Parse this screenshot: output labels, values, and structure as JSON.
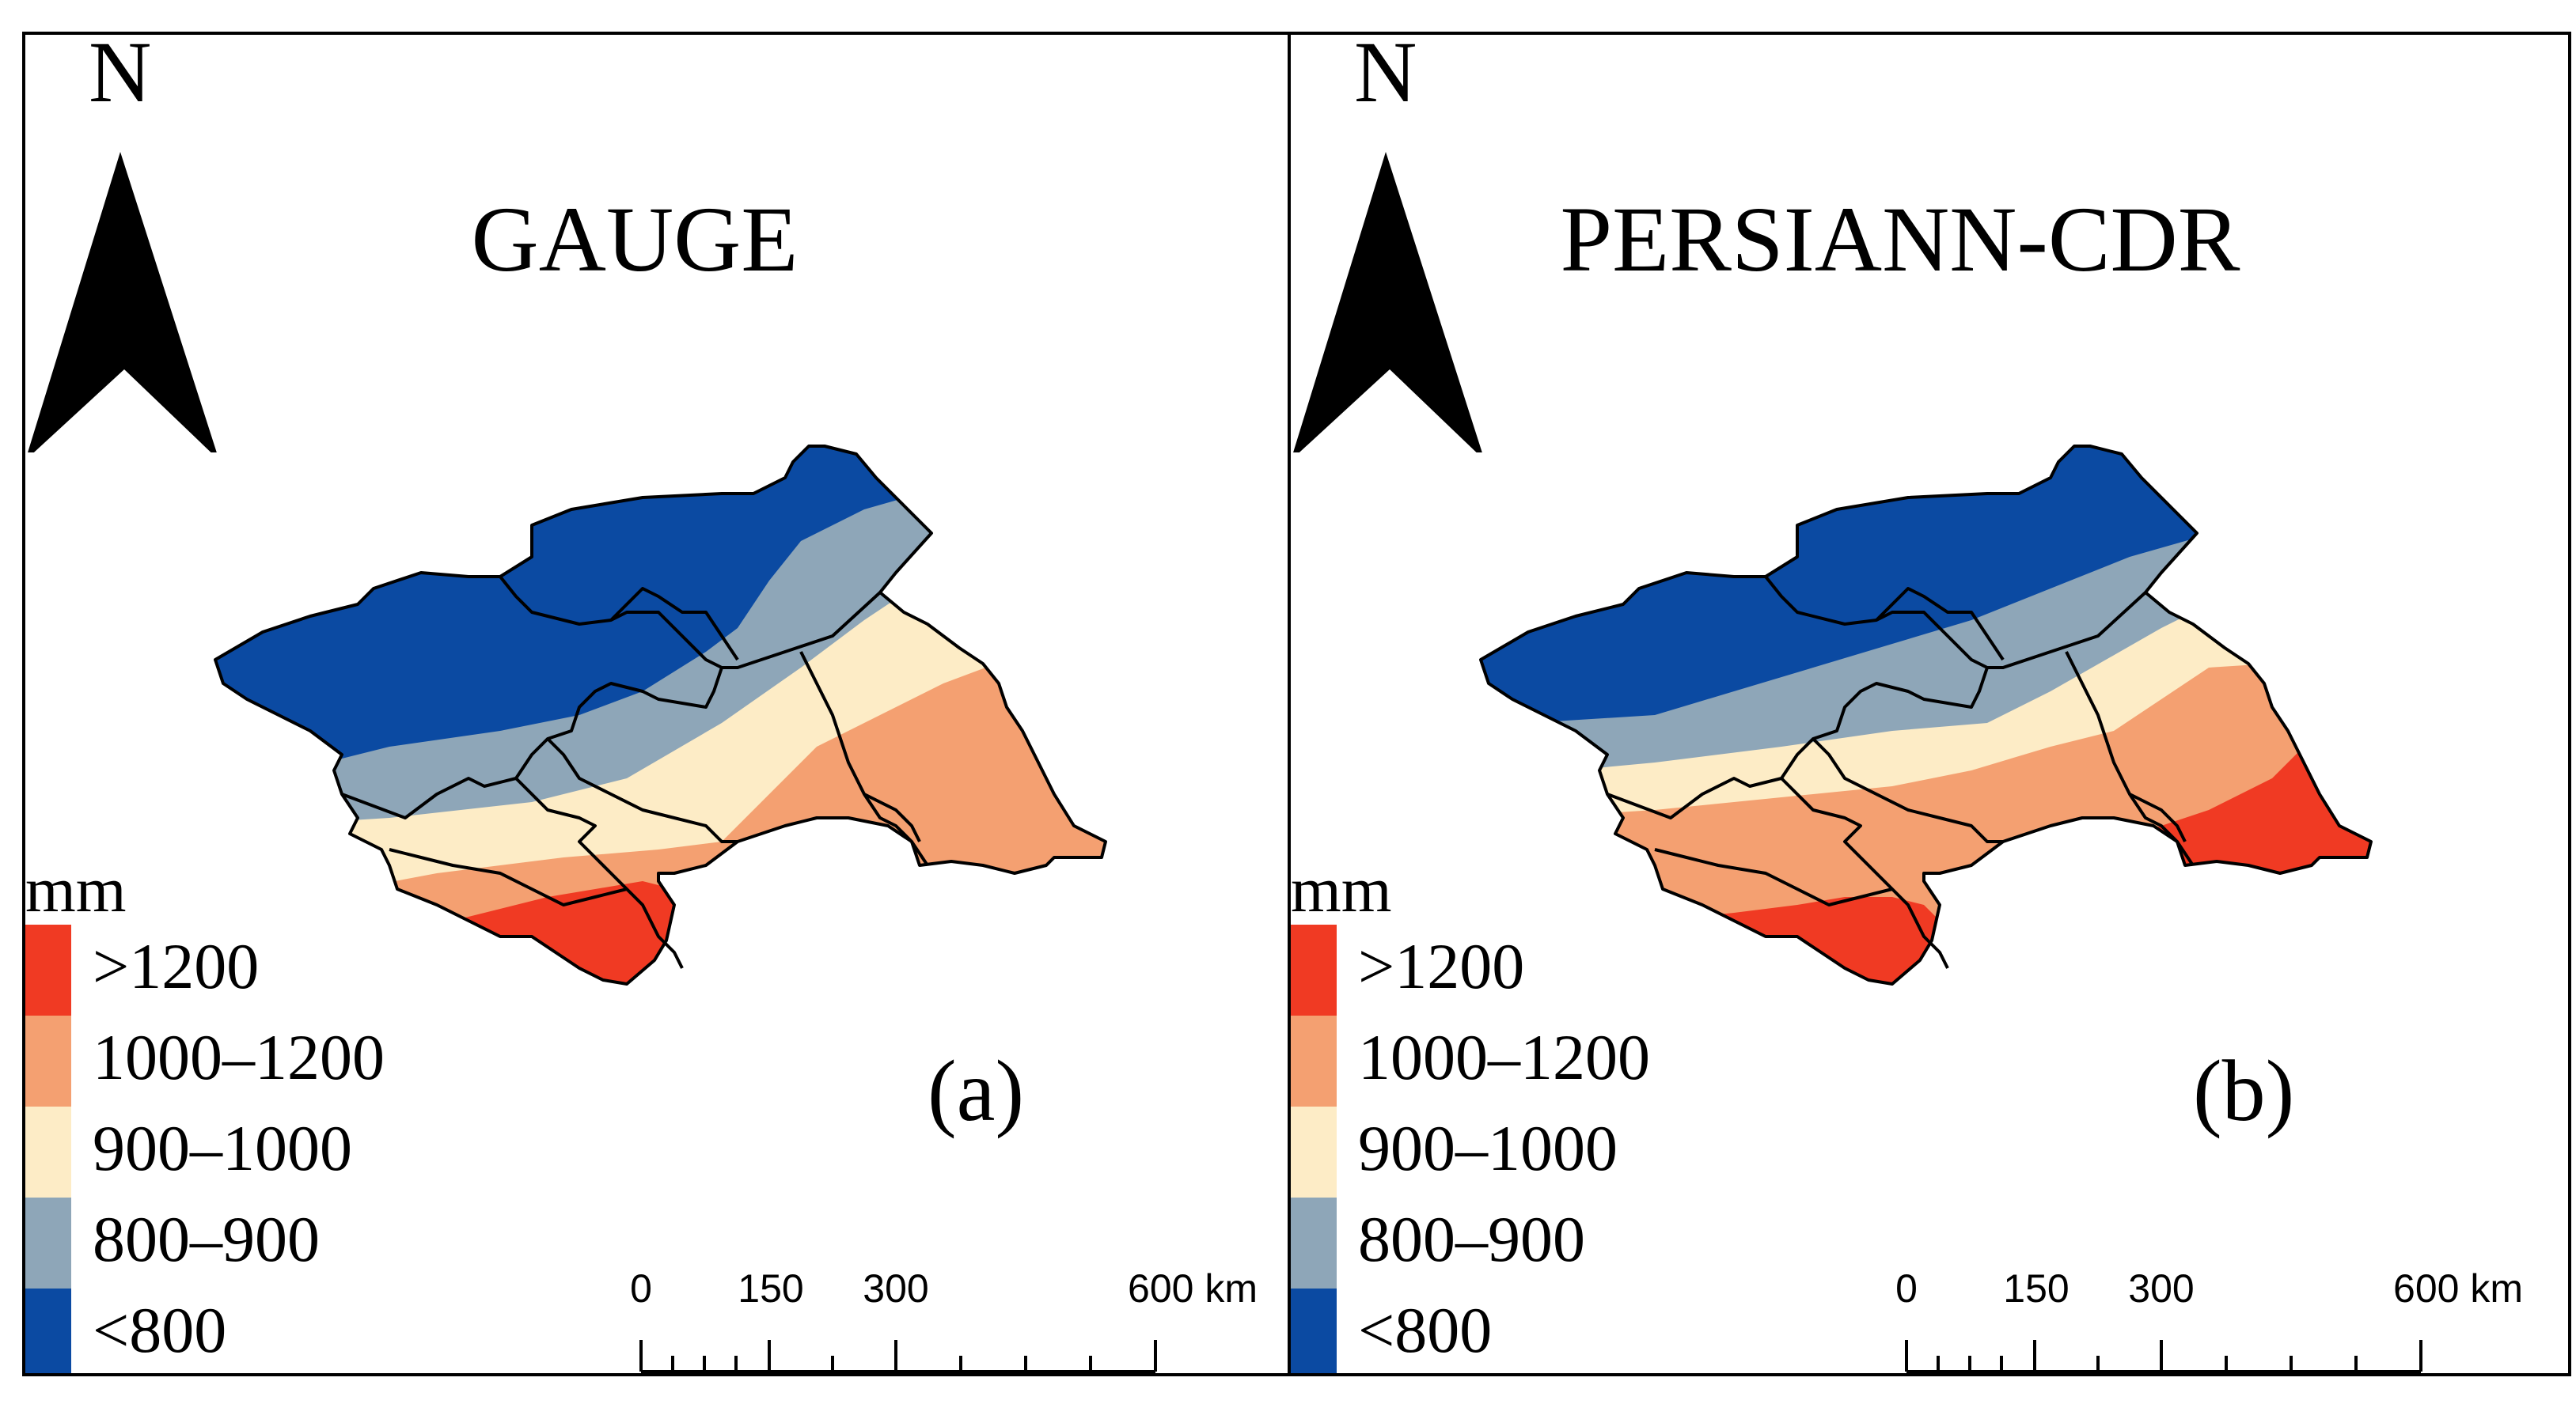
{
  "colors": {
    "gt1200": "#f03a23",
    "c1000_1200": "#f4a071",
    "c900_1000": "#fdecc6",
    "c800_900": "#8ea6b8",
    "lt800": "#0b4aa2",
    "border": "#000000"
  },
  "legend": {
    "unit": "mm",
    "classes": [
      {
        "label": ">1200",
        "color": "#f03a23"
      },
      {
        "label": "1000–1200",
        "color": "#f4a071"
      },
      {
        "label": "900–1000",
        "color": "#fdecc6"
      },
      {
        "label": "800–900",
        "color": "#8ea6b8"
      },
      {
        "label": "<800",
        "color": "#0b4aa2"
      }
    ]
  },
  "north_label": "N",
  "scale_bar": {
    "labels": [
      "0",
      "150",
      "300",
      "600 km"
    ],
    "values_km": [
      0,
      150,
      300,
      600
    ]
  },
  "panels": [
    {
      "title": "GAUGE",
      "label": "(a)"
    },
    {
      "title": "PERSIANN-CDR",
      "label": "(b)"
    }
  ]
}
